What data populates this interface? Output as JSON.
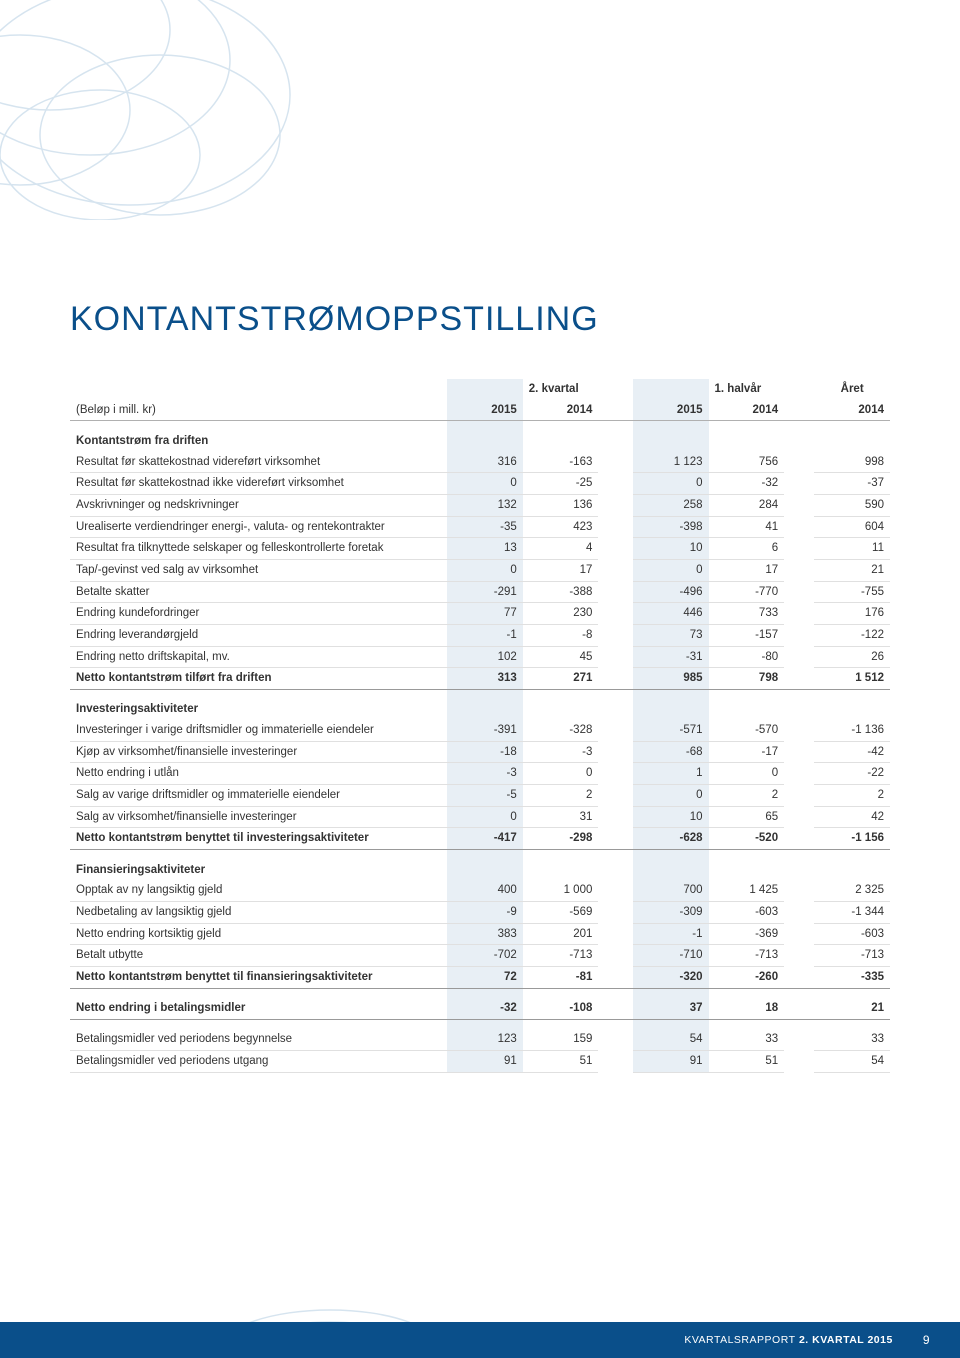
{
  "colors": {
    "brand_blue": "#0a4f8a",
    "shade_blue": "#e8eff5",
    "text": "#333333",
    "swirl_stroke": "#d6e4ef",
    "row_border": "#e0e0e0",
    "header_border": "#b0b0b0"
  },
  "title": "KONTANTSTRØMOPPSTILLING",
  "unit_label": "(Beløp i mill. kr)",
  "headers": {
    "group_q": "2. kvartal",
    "group_h": "1. halvår",
    "group_y": "Året",
    "y2015": "2015",
    "y2014": "2014",
    "year_2014": "2014"
  },
  "sections": [
    {
      "head": "Kontantstrøm fra driften",
      "rows": [
        {
          "label": "Resultat før skattekostnad videreført virksomhet",
          "q2015": "316",
          "q2014": "-163",
          "h2015": "1 123",
          "h2014": "756",
          "y2014": "998"
        },
        {
          "label": "Resultat før skattekostnad ikke videreført virksomhet",
          "q2015": "0",
          "q2014": "-25",
          "h2015": "0",
          "h2014": "-32",
          "y2014": "-37"
        },
        {
          "label": "Avskrivninger og nedskrivninger",
          "q2015": "132",
          "q2014": "136",
          "h2015": "258",
          "h2014": "284",
          "y2014": "590"
        },
        {
          "label": "Urealiserte verdiendringer energi-, valuta- og rentekontrakter",
          "q2015": "-35",
          "q2014": "423",
          "h2015": "-398",
          "h2014": "41",
          "y2014": "604"
        },
        {
          "label": "Resultat fra tilknyttede selskaper og felleskontrollerte foretak",
          "q2015": "13",
          "q2014": "4",
          "h2015": "10",
          "h2014": "6",
          "y2014": "11"
        },
        {
          "label": "Tap/-gevinst ved salg av virksomhet",
          "q2015": "0",
          "q2014": "17",
          "h2015": "0",
          "h2014": "17",
          "y2014": "21"
        },
        {
          "label": "Betalte skatter",
          "q2015": "-291",
          "q2014": "-388",
          "h2015": "-496",
          "h2014": "-770",
          "y2014": "-755"
        },
        {
          "label": "Endring kundefordringer",
          "q2015": "77",
          "q2014": "230",
          "h2015": "446",
          "h2014": "733",
          "y2014": "176"
        },
        {
          "label": "Endring leverandørgjeld",
          "q2015": "-1",
          "q2014": "-8",
          "h2015": "73",
          "h2014": "-157",
          "y2014": "-122"
        },
        {
          "label": "Endring netto driftskapital, mv.",
          "q2015": "102",
          "q2014": "45",
          "h2015": "-31",
          "h2014": "-80",
          "y2014": "26"
        }
      ],
      "total": {
        "label": "Netto kontantstrøm tilført fra driften",
        "q2015": "313",
        "q2014": "271",
        "h2015": "985",
        "h2014": "798",
        "y2014": "1 512"
      }
    },
    {
      "head": "Investeringsaktiviteter",
      "rows": [
        {
          "label": "Investeringer i varige driftsmidler og immaterielle eiendeler",
          "q2015": "-391",
          "q2014": "-328",
          "h2015": "-571",
          "h2014": "-570",
          "y2014": "-1 136"
        },
        {
          "label": "Kjøp av virksomhet/finansielle investeringer",
          "q2015": "-18",
          "q2014": "-3",
          "h2015": "-68",
          "h2014": "-17",
          "y2014": "-42"
        },
        {
          "label": "Netto endring i utlån",
          "q2015": "-3",
          "q2014": "0",
          "h2015": "1",
          "h2014": "0",
          "y2014": "-22"
        },
        {
          "label": "Salg av varige driftsmidler og immaterielle eiendeler",
          "q2015": "-5",
          "q2014": "2",
          "h2015": "0",
          "h2014": "2",
          "y2014": "2"
        },
        {
          "label": "Salg av virksomhet/finansielle investeringer",
          "q2015": "0",
          "q2014": "31",
          "h2015": "10",
          "h2014": "65",
          "y2014": "42"
        }
      ],
      "total": {
        "label": "Netto kontantstrøm benyttet til investeringsaktiviteter",
        "q2015": "-417",
        "q2014": "-298",
        "h2015": "-628",
        "h2014": "-520",
        "y2014": "-1 156"
      }
    },
    {
      "head": "Finansieringsaktiviteter",
      "rows": [
        {
          "label": "Opptak av ny langsiktig gjeld",
          "q2015": "400",
          "q2014": "1 000",
          "h2015": "700",
          "h2014": "1 425",
          "y2014": "2 325"
        },
        {
          "label": "Nedbetaling av langsiktig gjeld",
          "q2015": "-9",
          "q2014": "-569",
          "h2015": "-309",
          "h2014": "-603",
          "y2014": "-1 344"
        },
        {
          "label": "Netto endring kortsiktig gjeld",
          "q2015": "383",
          "q2014": "201",
          "h2015": "-1",
          "h2014": "-369",
          "y2014": "-603"
        },
        {
          "label": "Betalt utbytte",
          "q2015": "-702",
          "q2014": "-713",
          "h2015": "-710",
          "h2014": "-713",
          "y2014": "-713"
        }
      ],
      "total": {
        "label": "Netto kontantstrøm benyttet til finansieringsaktiviteter",
        "q2015": "72",
        "q2014": "-81",
        "h2015": "-320",
        "h2014": "-260",
        "y2014": "-335"
      }
    }
  ],
  "net_change": {
    "label": "Netto endring i betalingsmidler",
    "q2015": "-32",
    "q2014": "-108",
    "h2015": "37",
    "h2014": "18",
    "y2014": "21"
  },
  "end_rows": [
    {
      "label": "Betalingsmidler ved periodens begynnelse",
      "q2015": "123",
      "q2014": "159",
      "h2015": "54",
      "h2014": "33",
      "y2014": "33"
    },
    {
      "label": "Betalingsmidler ved periodens utgang",
      "q2015": "91",
      "q2014": "51",
      "h2015": "91",
      "h2014": "51",
      "y2014": "54"
    }
  ],
  "footer": {
    "label": "KVARTALSRAPPORT",
    "strong": "2. KVARTAL 2015",
    "page": "9"
  }
}
